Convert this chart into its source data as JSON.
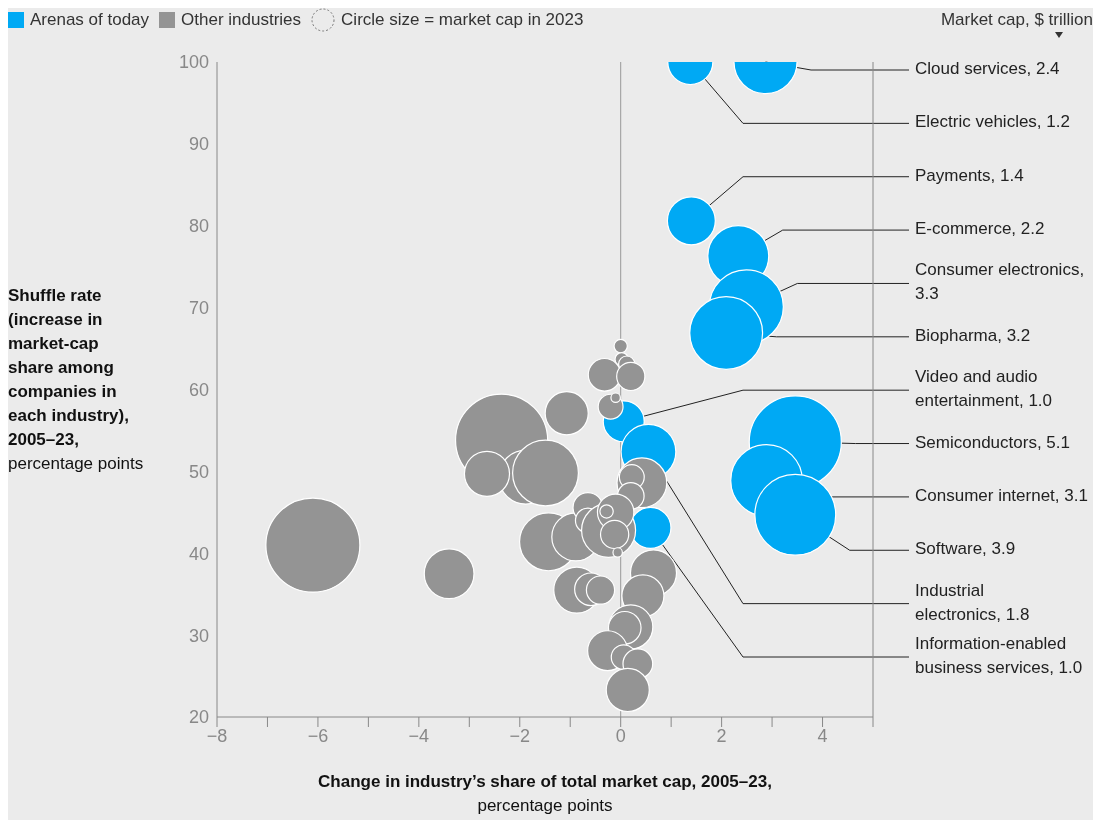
{
  "chart_data": {
    "type": "bubble",
    "xlabel": "Change in industry’s share of total market cap, 2005–23, percentage points",
    "ylabel": "Shuffle rate (increase in market-cap share among companies in each industry), 2005–23, percentage points",
    "xlim": [
      -8,
      5
    ],
    "ylim": [
      20,
      100
    ],
    "xticks": [
      -8,
      {
        "value": -7,
        "label": null
      },
      -6,
      {
        "value": -5,
        "label": null
      },
      -4,
      {
        "value": -3,
        "label": null
      },
      -2,
      {
        "value": -1,
        "label": null
      },
      0,
      {
        "value": 1,
        "label": null
      },
      2,
      {
        "value": 3,
        "label": null
      },
      4,
      {
        "value": 5,
        "label": null
      }
    ],
    "yticks": [
      20,
      30,
      40,
      50,
      60,
      70,
      80,
      90,
      100
    ],
    "grid": false,
    "legend": "top",
    "ref_lines": [
      {
        "axis": "x",
        "value": 0,
        "color": "#999999"
      }
    ],
    "series": [
      {
        "name": "Arenas of today",
        "color": "#00a9f4",
        "x": [
          2.87,
          1.38,
          1.4,
          2.33,
          2.49,
          2.09,
          0.06,
          3.46,
          2.89,
          3.46,
          0.55,
          0.59
        ],
        "values": [
          100,
          100,
          80.6,
          76.3,
          70.1,
          66.9,
          56.1,
          53.6,
          48.9,
          44.7,
          52.4,
          43.1
        ],
        "sizes": [
          0.45,
          0.23,
          0.26,
          0.42,
          0.62,
          0.6,
          0.19,
          0.96,
          0.58,
          0.74,
          0.34,
          0.19
        ]
      },
      {
        "name": "Other industries",
        "color": "#949494",
        "x": [
          0.0,
          0.02,
          0.12,
          -0.32,
          0.2,
          -1.07,
          -0.2,
          -0.1,
          -2.36,
          -1.88,
          -1.49,
          -2.65,
          -3.4,
          0.42,
          0.22,
          0.2,
          -1.43,
          -0.89,
          -0.65,
          -0.65,
          -0.24,
          -0.1,
          -0.28,
          -0.12,
          -0.06,
          -0.87,
          -0.59,
          -0.4,
          0.65,
          0.44,
          0.2,
          0.08,
          -0.26,
          0.06,
          0.34,
          0.14,
          -6.1
        ],
        "values": [
          65.3,
          63.7,
          63.1,
          61.8,
          61.6,
          57.1,
          57.9,
          59.0,
          53.8,
          49.3,
          49.8,
          49.7,
          37.5,
          48.6,
          49.3,
          47.0,
          41.4,
          42.0,
          45.6,
          44.0,
          42.8,
          45.0,
          45.1,
          42.3,
          40.1,
          35.5,
          35.6,
          35.5,
          37.6,
          34.8,
          31.0,
          30.9,
          28.1,
          27.3,
          26.5,
          23.3,
          41.0
        ],
        "sizes": [
          0.02,
          0.02,
          0.03,
          0.12,
          0.09,
          0.21,
          0.07,
          0.01,
          0.96,
          0.33,
          0.49,
          0.23,
          0.28,
          0.28,
          0.07,
          0.08,
          0.38,
          0.26,
          0.1,
          0.07,
          0.33,
          0.15,
          0.02,
          0.09,
          0.01,
          0.24,
          0.12,
          0.09,
          0.24,
          0.2,
          0.22,
          0.12,
          0.18,
          0.07,
          0.1,
          0.21,
          1
        ]
      }
    ],
    "annotations": [
      "Circle size = market cap in 2023",
      "Market cap, $ trillion",
      {
        "text": "Cloud services, 2.4",
        "x": 2.87,
        "y": 100
      },
      {
        "text": "Electric vehicles, 1.2",
        "x": 1.38,
        "y": 100
      },
      {
        "text": "Payments, 1.4",
        "x": 1.4,
        "y": 80.6
      },
      {
        "text": "E-commerce, 2.2",
        "x": 2.33,
        "y": 76.3
      },
      {
        "text": "Consumer electronics, 3.3",
        "x": 2.49,
        "y": 70.1
      },
      {
        "text": "Biopharma, 3.2",
        "x": 2.09,
        "y": 66.9
      },
      {
        "text": "Video and audio entertainment, 1.0",
        "x": 0.06,
        "y": 56.1
      },
      {
        "text": "Semiconductors, 5.1",
        "x": 3.46,
        "y": 53.6
      },
      {
        "text": "Consumer internet, 3.1",
        "x": 2.89,
        "y": 48.9
      },
      {
        "text": "Software, 3.9",
        "x": 3.46,
        "y": 44.7
      },
      {
        "text": "Industrial electronics, 1.8",
        "x": 0.55,
        "y": 52.4
      },
      {
        "text": "Information-enabled business services, 1.0",
        "x": 0.59,
        "y": 43.1
      }
    ]
  }
}
